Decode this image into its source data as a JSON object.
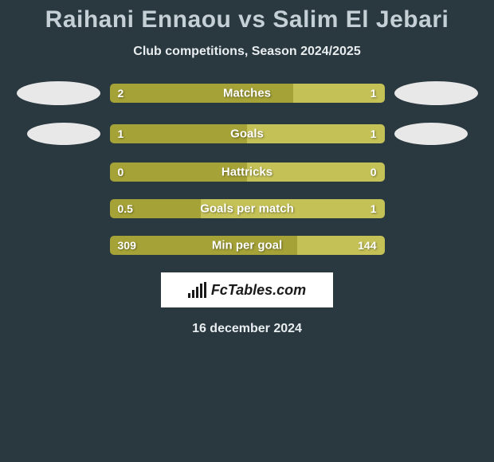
{
  "title": "Raihani Ennaou vs Salim El Jebari",
  "subtitle": "Club competitions, Season 2024/2025",
  "date": "16 december 2024",
  "brand": "FcTables.com",
  "colors": {
    "background": "#2a3840",
    "bar_left": "#a5a237",
    "bar_right": "#c4c157",
    "text": "#ffffff",
    "title": "#c4d0d5",
    "ellipse": "#e8e8e8"
  },
  "rows": [
    {
      "label": "Matches",
      "left": "2",
      "right": "1",
      "left_pct": 66.7,
      "show_ellipse": true,
      "ellipse_small": false
    },
    {
      "label": "Goals",
      "left": "1",
      "right": "1",
      "left_pct": 50.0,
      "show_ellipse": true,
      "ellipse_small": true
    },
    {
      "label": "Hattricks",
      "left": "0",
      "right": "0",
      "left_pct": 50.0,
      "show_ellipse": false,
      "ellipse_small": false
    },
    {
      "label": "Goals per match",
      "left": "0.5",
      "right": "1",
      "left_pct": 33.3,
      "show_ellipse": false,
      "ellipse_small": false
    },
    {
      "label": "Min per goal",
      "left": "309",
      "right": "144",
      "left_pct": 68.3,
      "show_ellipse": false,
      "ellipse_small": false
    }
  ]
}
